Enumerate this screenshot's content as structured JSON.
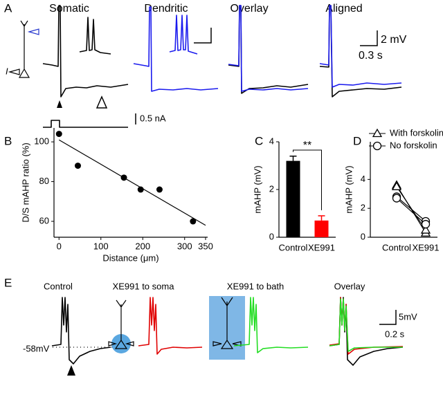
{
  "panel_a": {
    "label": "A",
    "i_label": "I",
    "titles": [
      "Somatic",
      "Dendritic",
      "Overlay",
      "Aligned"
    ],
    "scale_v": "2 mV",
    "scale_t": "0.3 s",
    "scale_i": "0.5 nA"
  },
  "panel_e": {
    "label": "E",
    "titles": [
      "Control",
      "XE991 to soma",
      "XE991 to bath",
      "Overlay"
    ],
    "baseline": "-58mV",
    "scale_v": "5mV",
    "scale_t": "0.2 s"
  },
  "chart_data": [
    {
      "type": "scatter",
      "label": "B",
      "x": [
        0,
        45,
        155,
        195,
        240,
        320
      ],
      "values": [
        104,
        88,
        82,
        76,
        76,
        60
      ],
      "color": "#000000",
      "fit_x": [
        0,
        350
      ],
      "fit_y": [
        101,
        58
      ],
      "xlabel": "Distance (μm)",
      "ylabel": "D/S mAHP ratio (%)",
      "xlim": [
        -12,
        355
      ],
      "ylim": [
        52,
        107
      ],
      "xticks": [
        0,
        100,
        200,
        300,
        350
      ],
      "yticks": [
        60,
        80,
        100
      ]
    },
    {
      "type": "bar",
      "label": "C",
      "categories": [
        "Control",
        "XE991"
      ],
      "values": [
        3.2,
        0.7
      ],
      "errors": [
        0.2,
        0.2
      ],
      "colors": [
        "#000000",
        "#ff0000"
      ],
      "annotation": "**",
      "ylabel": "mAHP (mV)",
      "ylim": [
        0,
        4
      ],
      "yticks": [
        0,
        2,
        4
      ]
    },
    {
      "type": "line",
      "label": "D",
      "categories": [
        "Control",
        "XE991"
      ],
      "ylabel": "mAHP (mV)",
      "ylim": [
        0,
        6.6
      ],
      "yticks": [
        0,
        2,
        4
      ],
      "series": [
        {
          "name": "With forskolin",
          "marker": "triangle",
          "cells": [
            [
              3.6,
              0.3
            ],
            [
              3.5,
              0.5
            ]
          ]
        },
        {
          "name": "No forskolin",
          "marker": "circle",
          "cells": [
            [
              2.8,
              1.1
            ],
            [
              2.7,
              0.9
            ]
          ]
        }
      ]
    }
  ]
}
